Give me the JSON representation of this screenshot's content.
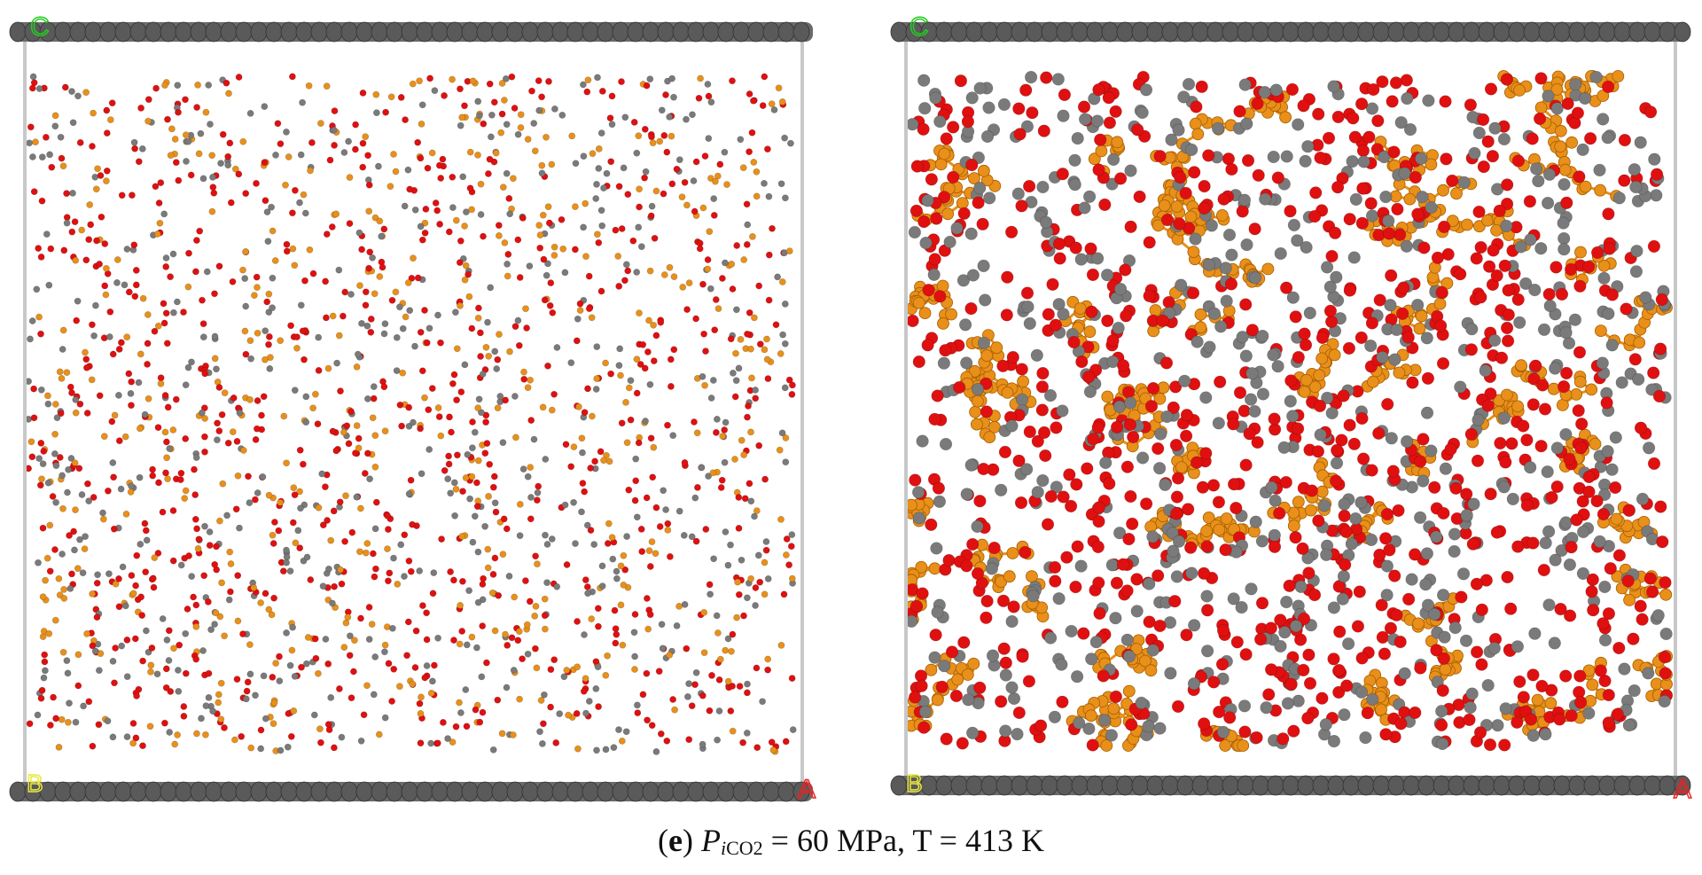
{
  "panels": [
    {
      "name": "panel-left",
      "axis_labels": {
        "top_left": "C",
        "bottom_left": "B",
        "bottom_right": "A"
      },
      "style": "sparse",
      "colors": {
        "oxygen": "#e01010",
        "carbon": "#7a7a7a",
        "polymer": "#e8901a",
        "wall": "#5a5a5a",
        "frame": "#c8c8c8",
        "label_c": "#22cc22",
        "label_b": "#e8e840",
        "label_a": "#ee2222"
      }
    },
    {
      "name": "panel-right",
      "axis_labels": {
        "top_left": "C",
        "bottom_left": "B",
        "bottom_right": "A"
      },
      "style": "dense",
      "colors": {
        "oxygen": "#e01010",
        "carbon": "#7a7a7a",
        "polymer": "#e8901a",
        "wall": "#5a5a5a",
        "frame": "#c8c8c8",
        "label_c": "#22cc22",
        "label_b": "#e8e840",
        "label_a": "#ee2222"
      }
    }
  ],
  "caption": {
    "open_paren": "(",
    "letter": "e",
    "close_paren": ") ",
    "p_symbol": "P",
    "p_subscript_i": "i",
    "p_subscript_co2": "CO2",
    "rest": " = 60 MPa, T = 413 K"
  }
}
